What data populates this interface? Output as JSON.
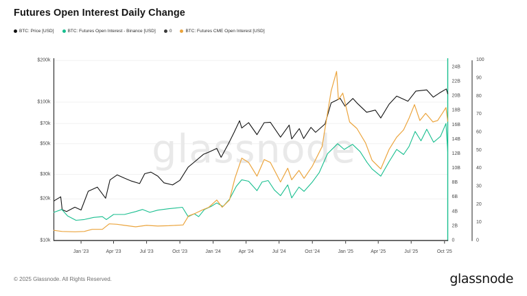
{
  "header": {
    "title": "Futures Open Interest Daily Change"
  },
  "watermark": "glassnode",
  "footer": {
    "copyright": "© 2025 Glassnode. All Rights Reserved.",
    "brand": "glassnode"
  },
  "legend": {
    "items": [
      {
        "label": "BTC: Price [USD]",
        "color": "#111111"
      },
      {
        "label": "BTC: Futures Open Interest - Binance [USD]",
        "color": "#17be8e"
      },
      {
        "label": "0",
        "color": "#3a3a3a"
      },
      {
        "label": "BTC: Futures CME Open Interest [USD]",
        "color": "#eba43c"
      }
    ]
  },
  "chart_data": {
    "type": "line",
    "title": "Futures Open Interest Daily Change",
    "grid": true,
    "x_axis": {
      "range": [
        "2022-10-18",
        "2025-10-10"
      ],
      "ticks": [
        {
          "date": "2023-01-01",
          "label": "Jan '23"
        },
        {
          "date": "2023-04-01",
          "label": "Apr '23"
        },
        {
          "date": "2023-07-01",
          "label": "Jul '23"
        },
        {
          "date": "2023-10-01",
          "label": "Oct '23"
        },
        {
          "date": "2024-01-01",
          "label": "Jan '24"
        },
        {
          "date": "2024-04-01",
          "label": "Apr '24"
        },
        {
          "date": "2024-07-01",
          "label": "Jul '24"
        },
        {
          "date": "2024-10-01",
          "label": "Oct '24"
        },
        {
          "date": "2025-01-01",
          "label": "Jan '25"
        },
        {
          "date": "2025-04-01",
          "label": "Apr '25"
        },
        {
          "date": "2025-07-01",
          "label": "Jul '25"
        },
        {
          "date": "2025-10-01",
          "label": "Oct '25"
        }
      ]
    },
    "y_axis_price": {
      "side": "left",
      "scale": "log",
      "unit": "USD",
      "range": [
        10000,
        200000
      ],
      "ticks": [
        200000,
        100000,
        70000,
        50000,
        30000,
        20000,
        10000
      ],
      "tick_labels": [
        "$200k",
        "$100k",
        "$70k",
        "$50k",
        "$30k",
        "$20k",
        "$10k"
      ]
    },
    "y_axis_oi": {
      "side": "right",
      "scale": "linear",
      "unit": "billion USD",
      "range": [
        0,
        25
      ],
      "ticks": [
        24,
        22,
        20,
        18,
        16,
        14,
        12,
        10,
        8,
        6,
        4,
        2,
        0
      ],
      "tick_labels": [
        "24B",
        "22B",
        "20B",
        "18B",
        "16B",
        "14B",
        "12B",
        "10B",
        "8B",
        "6B",
        "4B",
        "2B",
        "0"
      ],
      "axis_color": "#17be8e"
    },
    "y_axis_pct": {
      "side": "right-outer",
      "scale": "linear",
      "range": [
        0,
        100
      ],
      "ticks": [
        100,
        90,
        80,
        70,
        60,
        50,
        40,
        30,
        20,
        10,
        0
      ],
      "tick_labels": [
        "100",
        "90",
        "80",
        "70",
        "60",
        "50",
        "40",
        "30",
        "20",
        "10",
        "0"
      ],
      "axis_color": "#555555"
    },
    "series": [
      {
        "name": "BTC: Price [USD]",
        "color": "#111111",
        "axis": "price",
        "width": 1.1,
        "points": [
          [
            "2022-10-18",
            19300
          ],
          [
            "2022-11-06",
            20700
          ],
          [
            "2022-11-10",
            16700
          ],
          [
            "2022-11-22",
            16200
          ],
          [
            "2022-12-15",
            17400
          ],
          [
            "2023-01-01",
            16600
          ],
          [
            "2023-01-21",
            22700
          ],
          [
            "2023-02-15",
            24300
          ],
          [
            "2023-03-10",
            20200
          ],
          [
            "2023-03-22",
            27400
          ],
          [
            "2023-04-11",
            29800
          ],
          [
            "2023-05-01",
            28200
          ],
          [
            "2023-05-20",
            26900
          ],
          [
            "2023-06-12",
            25800
          ],
          [
            "2023-06-26",
            30400
          ],
          [
            "2023-07-13",
            31200
          ],
          [
            "2023-08-01",
            29200
          ],
          [
            "2023-08-18",
            26100
          ],
          [
            "2023-09-11",
            25200
          ],
          [
            "2023-10-01",
            27200
          ],
          [
            "2023-10-24",
            33900
          ],
          [
            "2023-11-10",
            36900
          ],
          [
            "2023-12-05",
            41900
          ],
          [
            "2023-12-20",
            43500
          ],
          [
            "2024-01-11",
            46300
          ],
          [
            "2024-01-23",
            39900
          ],
          [
            "2024-02-12",
            49900
          ],
          [
            "2024-02-28",
            60500
          ],
          [
            "2024-03-14",
            73300
          ],
          [
            "2024-03-20",
            65000
          ],
          [
            "2024-04-08",
            71000
          ],
          [
            "2024-05-01",
            58200
          ],
          [
            "2024-05-21",
            71000
          ],
          [
            "2024-06-07",
            71500
          ],
          [
            "2024-07-05",
            55800
          ],
          [
            "2024-07-29",
            68200
          ],
          [
            "2024-08-05",
            54200
          ],
          [
            "2024-08-26",
            64300
          ],
          [
            "2024-09-07",
            54500
          ],
          [
            "2024-09-27",
            65700
          ],
          [
            "2024-10-10",
            60500
          ],
          [
            "2024-11-05",
            69500
          ],
          [
            "2024-11-22",
            98800
          ],
          [
            "2024-12-17",
            106300
          ],
          [
            "2024-12-30",
            93500
          ],
          [
            "2025-01-21",
            106200
          ],
          [
            "2025-02-03",
            97500
          ],
          [
            "2025-02-28",
            84500
          ],
          [
            "2025-03-24",
            87500
          ],
          [
            "2025-04-08",
            76800
          ],
          [
            "2025-05-01",
            96500
          ],
          [
            "2025-05-22",
            110400
          ],
          [
            "2025-06-22",
            101500
          ],
          [
            "2025-07-14",
            120100
          ],
          [
            "2025-08-13",
            122500
          ],
          [
            "2025-08-31",
            108500
          ],
          [
            "2025-09-18",
            116800
          ],
          [
            "2025-10-06",
            124500
          ],
          [
            "2025-10-10",
            114800
          ]
        ]
      },
      {
        "name": "BTC: Futures Open Interest - Binance [USD]",
        "color": "#17be8e",
        "axis": "oi",
        "width": 1.1,
        "points": [
          [
            "2022-10-18",
            3.9
          ],
          [
            "2022-11-09",
            4.3
          ],
          [
            "2022-11-25",
            3.4
          ],
          [
            "2022-12-18",
            2.8
          ],
          [
            "2023-01-10",
            2.9
          ],
          [
            "2023-02-05",
            3.2
          ],
          [
            "2023-03-01",
            3.3
          ],
          [
            "2023-03-12",
            2.9
          ],
          [
            "2023-04-01",
            3.6
          ],
          [
            "2023-05-01",
            3.6
          ],
          [
            "2023-06-01",
            4.0
          ],
          [
            "2023-06-20",
            4.3
          ],
          [
            "2023-07-10",
            3.9
          ],
          [
            "2023-08-01",
            4.2
          ],
          [
            "2023-09-01",
            4.4
          ],
          [
            "2023-10-08",
            4.6
          ],
          [
            "2023-10-24",
            3.3
          ],
          [
            "2023-11-10",
            3.7
          ],
          [
            "2023-11-22",
            3.3
          ],
          [
            "2023-12-08",
            4.3
          ],
          [
            "2023-12-26",
            4.7
          ],
          [
            "2024-01-11",
            5.2
          ],
          [
            "2024-01-28",
            4.7
          ],
          [
            "2024-02-15",
            5.7
          ],
          [
            "2024-03-05",
            7.5
          ],
          [
            "2024-03-20",
            8.4
          ],
          [
            "2024-04-08",
            8.2
          ],
          [
            "2024-05-01",
            6.9
          ],
          [
            "2024-05-15",
            8.1
          ],
          [
            "2024-06-01",
            8.3
          ],
          [
            "2024-06-18",
            7.0
          ],
          [
            "2024-07-05",
            6.2
          ],
          [
            "2024-07-25",
            7.7
          ],
          [
            "2024-08-05",
            5.9
          ],
          [
            "2024-08-25",
            7.4
          ],
          [
            "2024-09-08",
            6.8
          ],
          [
            "2024-10-01",
            8.1
          ],
          [
            "2024-10-20",
            9.4
          ],
          [
            "2024-11-12",
            12.0
          ],
          [
            "2024-12-10",
            13.4
          ],
          [
            "2024-12-28",
            12.6
          ],
          [
            "2025-01-20",
            13.3
          ],
          [
            "2025-02-10",
            12.3
          ],
          [
            "2025-03-01",
            10.8
          ],
          [
            "2025-03-15",
            9.9
          ],
          [
            "2025-04-08",
            8.9
          ],
          [
            "2025-05-01",
            10.9
          ],
          [
            "2025-05-22",
            12.6
          ],
          [
            "2025-06-10",
            11.9
          ],
          [
            "2025-06-25",
            13.0
          ],
          [
            "2025-07-12",
            15.1
          ],
          [
            "2025-07-28",
            13.8
          ],
          [
            "2025-08-13",
            15.4
          ],
          [
            "2025-09-01",
            13.6
          ],
          [
            "2025-09-20",
            14.4
          ],
          [
            "2025-10-05",
            16.2
          ],
          [
            "2025-10-10",
            12.3
          ]
        ]
      },
      {
        "name": "0",
        "color": "#3a3a3a",
        "axis": "oi",
        "width": 1.4,
        "points": [
          [
            "2022-10-18",
            0
          ],
          [
            "2025-10-10",
            0
          ]
        ]
      },
      {
        "name": "BTC: Futures CME Open Interest [USD]",
        "color": "#eba43c",
        "axis": "oi",
        "width": 1.2,
        "points": [
          [
            "2022-10-18",
            1.4
          ],
          [
            "2022-11-10",
            1.25
          ],
          [
            "2022-12-15",
            1.2
          ],
          [
            "2023-01-10",
            1.25
          ],
          [
            "2023-02-01",
            1.55
          ],
          [
            "2023-03-01",
            1.55
          ],
          [
            "2023-03-20",
            2.3
          ],
          [
            "2023-04-10",
            2.25
          ],
          [
            "2023-05-01",
            2.1
          ],
          [
            "2023-06-01",
            1.9
          ],
          [
            "2023-07-01",
            2.1
          ],
          [
            "2023-08-01",
            2.0
          ],
          [
            "2023-09-01",
            2.05
          ],
          [
            "2023-10-10",
            2.15
          ],
          [
            "2023-10-25",
            3.4
          ],
          [
            "2023-11-10",
            3.7
          ],
          [
            "2023-12-01",
            4.2
          ],
          [
            "2023-12-20",
            4.6
          ],
          [
            "2024-01-11",
            5.6
          ],
          [
            "2024-01-26",
            4.6
          ],
          [
            "2024-02-15",
            5.6
          ],
          [
            "2024-03-01",
            8.6
          ],
          [
            "2024-03-20",
            11.4
          ],
          [
            "2024-04-08",
            10.8
          ],
          [
            "2024-05-01",
            8.9
          ],
          [
            "2024-05-21",
            11.2
          ],
          [
            "2024-06-07",
            10.8
          ],
          [
            "2024-07-05",
            8.1
          ],
          [
            "2024-07-25",
            10.0
          ],
          [
            "2024-08-05",
            8.4
          ],
          [
            "2024-08-25",
            9.7
          ],
          [
            "2024-09-08",
            8.6
          ],
          [
            "2024-10-01",
            10.3
          ],
          [
            "2024-10-28",
            13.0
          ],
          [
            "2024-11-22",
            20.7
          ],
          [
            "2024-12-07",
            23.4
          ],
          [
            "2024-12-12",
            19.5
          ],
          [
            "2024-12-24",
            20.4
          ],
          [
            "2025-01-12",
            16.4
          ],
          [
            "2025-02-01",
            15.5
          ],
          [
            "2025-02-25",
            13.5
          ],
          [
            "2025-03-15",
            11.1
          ],
          [
            "2025-04-08",
            9.9
          ],
          [
            "2025-05-01",
            12.6
          ],
          [
            "2025-05-22",
            14.3
          ],
          [
            "2025-06-10",
            15.3
          ],
          [
            "2025-06-25",
            16.9
          ],
          [
            "2025-07-10",
            18.8
          ],
          [
            "2025-07-25",
            16.6
          ],
          [
            "2025-08-10",
            17.6
          ],
          [
            "2025-08-30",
            16.4
          ],
          [
            "2025-09-12",
            16.6
          ],
          [
            "2025-09-25",
            17.6
          ],
          [
            "2025-10-05",
            18.4
          ],
          [
            "2025-10-10",
            16.5
          ]
        ]
      }
    ]
  }
}
